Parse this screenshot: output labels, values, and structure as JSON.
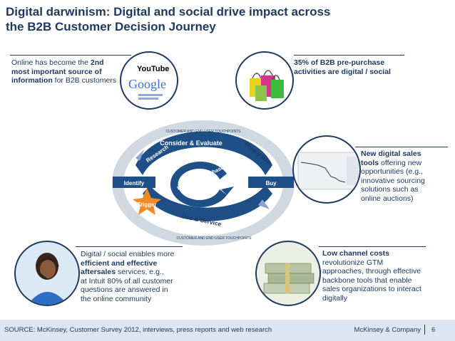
{
  "title": {
    "line1": "Digital darwinism: Digital and social drive impact across",
    "line2": "the B2B Customer Decision Journey"
  },
  "callouts": {
    "online": {
      "pre": "Online has become the ",
      "bold1": "2nd",
      "bold2": "most important source of",
      "bold3": "information",
      "post": " for B2B customers"
    },
    "pre_purchase": {
      "line1": "35% of B2B pre-purchase",
      "line2": "activities are digital / social"
    },
    "sales_tools": {
      "bold1": "New digital sales",
      "bold2": "tools",
      "line2_rest": " offering new",
      "line3": "opportunities (e.g.,",
      "line4": "innovative sourcing",
      "line5": "solutions such as",
      "line6": "online auctions)"
    },
    "aftersales": {
      "line1": "Digital / social enables more",
      "bold2": "efficient and effective",
      "bold3": "aftersales",
      "line3_rest": " services, e.g.,",
      "line4": "at Intuit 80% of all customer",
      "line5": "questions are answered in",
      "line6": "the online community"
    },
    "channel": {
      "bold1": "Low channel costs",
      "line2": "revolutionize GTM",
      "line3": "approaches, through effective",
      "line4": "backbone tools that enable",
      "line5": "sales organizations to interact",
      "line6": "digitally"
    }
  },
  "logos": {
    "youtube": "YouTube",
    "google": "Google"
  },
  "cycle": {
    "top_arc": "CUSTOMER AND END USER TOUCHPOINTS",
    "bottom_arc": "CUSTOMER AND END USER TOUCHPOINTS",
    "consider": "Consider & Evaluate",
    "research": "Research",
    "formal_rfp": "Formal RFP",
    "identify": "Identify",
    "buy": "Buy",
    "loyalty": "Loyalty Repurchase",
    "use_service": "Use & Service",
    "trigger": "Trigger"
  },
  "footer": {
    "source": "SOURCE: McKinsey, Customer Survey 2012, interviews, press reports and web research",
    "company": "McKinsey & Company",
    "page": "6"
  },
  "colors": {
    "navy": "#1f3a60",
    "orange": "#f08a24",
    "cycle_blue": "#1e4f86",
    "footer_bg": "#dde6f0"
  }
}
